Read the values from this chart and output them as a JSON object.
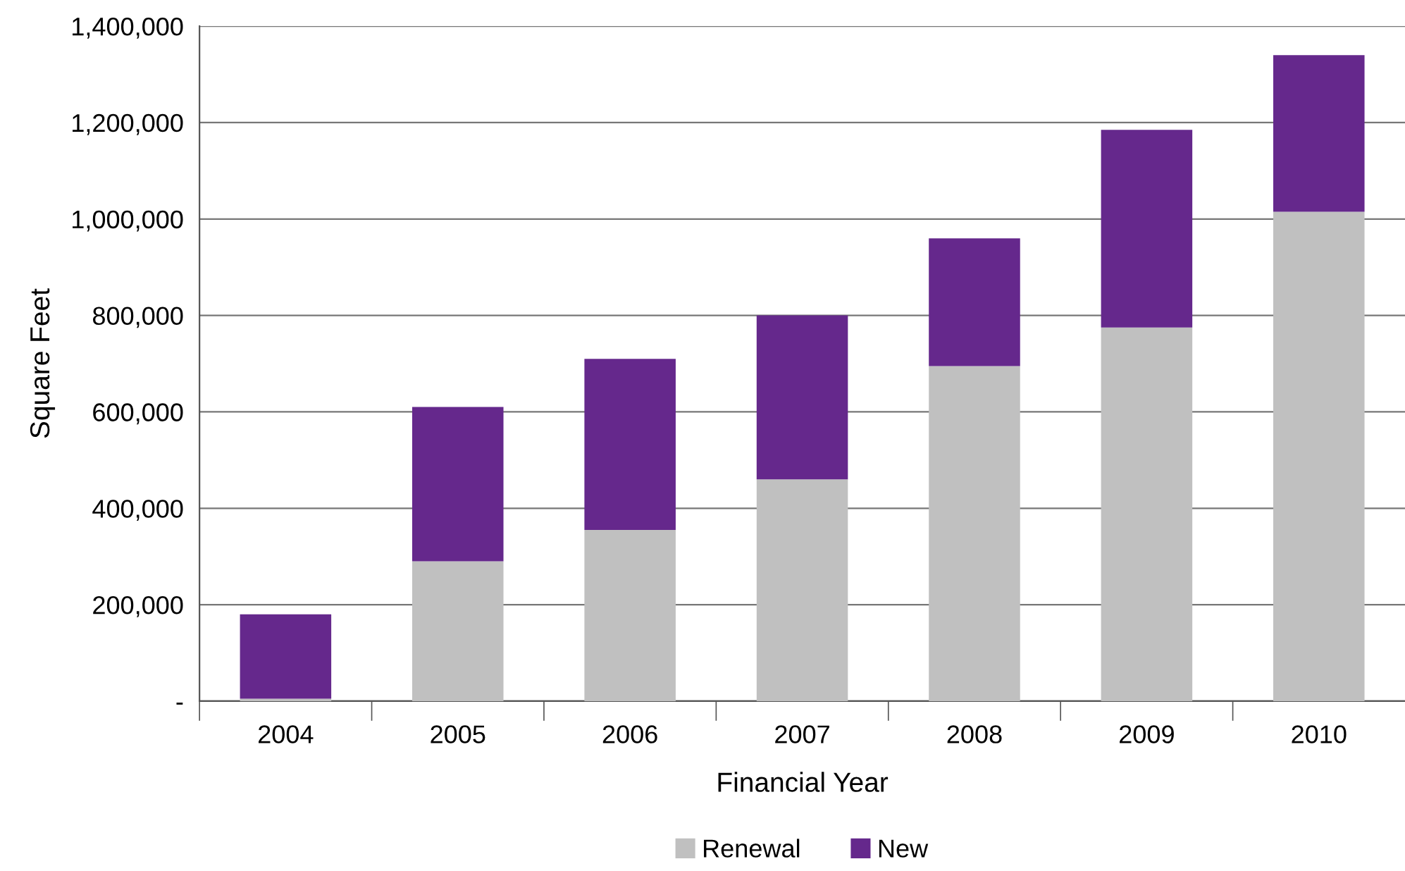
{
  "chart_data": {
    "type": "bar",
    "stacked": true,
    "xlabel": "Financial Year",
    "ylabel": "Square Feet",
    "categories": [
      "2004",
      "2005",
      "2006",
      "2007",
      "2008",
      "2009",
      "2010"
    ],
    "series": [
      {
        "name": "Renewal",
        "color": "#c0c0c0",
        "values": [
          5000,
          290000,
          355000,
          460000,
          695000,
          775000,
          1015000
        ]
      },
      {
        "name": "New",
        "color": "#65288c",
        "values": [
          175000,
          320000,
          355000,
          340000,
          265000,
          410000,
          325000
        ]
      }
    ],
    "ylim": [
      0,
      1400000
    ],
    "yticks": [
      {
        "value": 0,
        "label": "-"
      },
      {
        "value": 200000,
        "label": "200,000"
      },
      {
        "value": 400000,
        "label": "400,000"
      },
      {
        "value": 600000,
        "label": "600,000"
      },
      {
        "value": 800000,
        "label": "800,000"
      },
      {
        "value": 1000000,
        "label": "1,000,000"
      },
      {
        "value": 1200000,
        "label": "1,200,000"
      },
      {
        "value": 1400000,
        "label": "1,400,000"
      }
    ],
    "grid": "y",
    "legend": "bottom"
  }
}
